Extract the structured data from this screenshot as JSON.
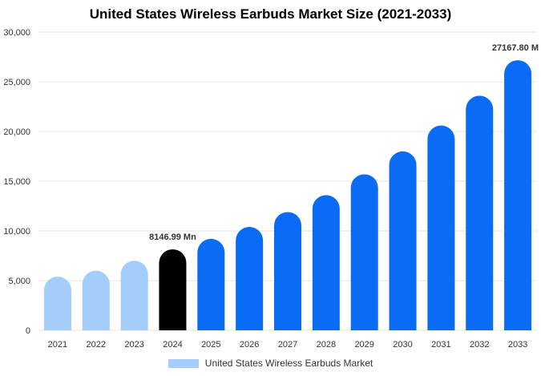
{
  "chart_data": {
    "type": "bar",
    "title": "United States Wireless Earbuds Market Size (2021-2033)",
    "categories": [
      "2021",
      "2022",
      "2023",
      "2024",
      "2025",
      "2026",
      "2027",
      "2028",
      "2029",
      "2030",
      "2031",
      "2032",
      "2033"
    ],
    "series": [
      {
        "name": "United States Wireless Earbuds Market",
        "values": [
          5400,
          6000,
          7000,
          8146.99,
          9200,
          10400,
          11900,
          13600,
          15700,
          18000,
          20600,
          23600,
          27167.8
        ]
      }
    ],
    "ylim": [
      0,
      30000
    ],
    "yticks": [
      "0",
      "5,000",
      "10,000",
      "15,000",
      "20,000",
      "25,000",
      "30,000"
    ],
    "ytick_values": [
      0,
      5000,
      10000,
      15000,
      20000,
      25000,
      30000
    ],
    "grid": true,
    "legend_position": "bottom",
    "bar_colors": [
      "#a4cdfa",
      "#a4cdfa",
      "#a4cdfa",
      "#000000",
      "#0a6cf5",
      "#0a6cf5",
      "#0a6cf5",
      "#0a6cf5",
      "#0a6cf5",
      "#0a6cf5",
      "#0a6cf5",
      "#0a6cf5",
      "#0a6cf5"
    ],
    "legend_color": "#a4cdfa",
    "annotations": [
      {
        "category": "2024",
        "text": "8146.99 Mn"
      },
      {
        "category": "2033",
        "text": "27167.80 M"
      }
    ]
  }
}
